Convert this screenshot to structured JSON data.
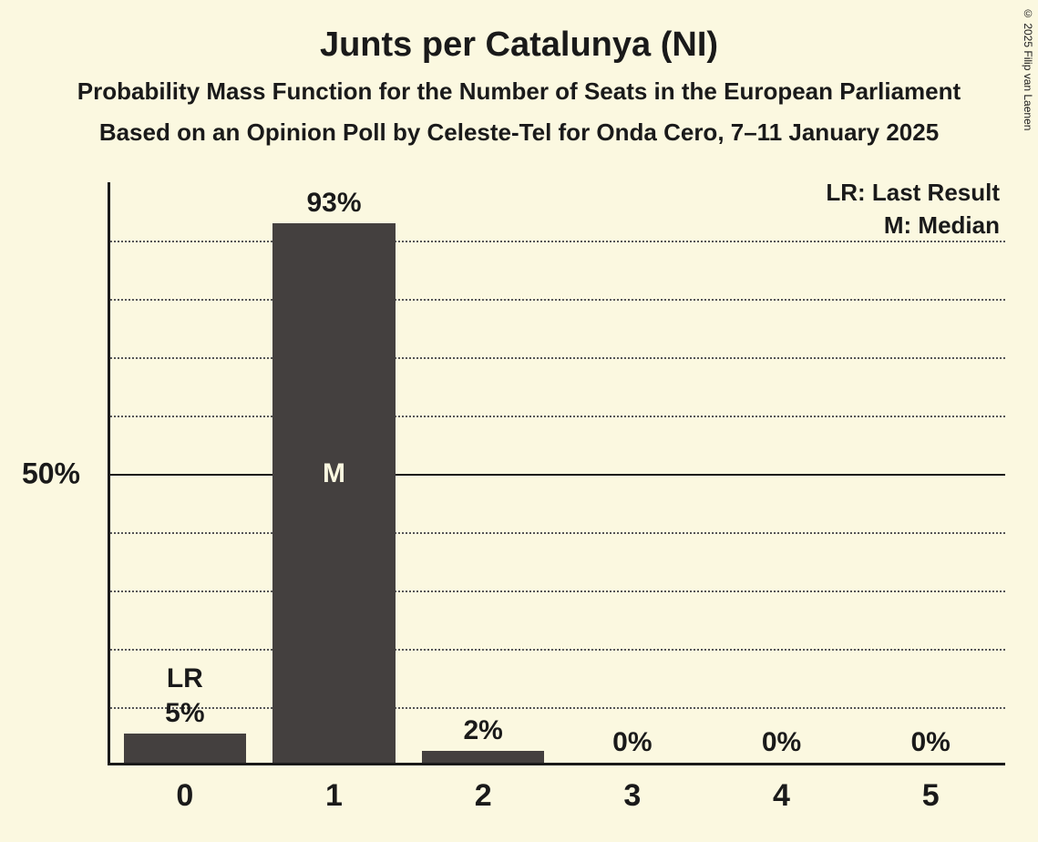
{
  "title": "Junts per Catalunya (NI)",
  "subtitle1": "Probability Mass Function for the Number of Seats in the European Parliament",
  "subtitle2": "Based on an Opinion Poll by Celeste-Tel for Onda Cero, 7–11 January 2025",
  "legend_lr": "LR: Last Result",
  "legend_m": "M: Median",
  "copyright": "© 2025 Filip van Laenen",
  "chart": {
    "type": "bar",
    "background_color": "#fbf8e0",
    "bar_color": "#44403f",
    "text_color": "#1a1a1a",
    "grid_color": "#565656",
    "y_max": 100,
    "y_tick": {
      "value": 50,
      "label": "50%"
    },
    "grid_steps": [
      10,
      20,
      30,
      40,
      60,
      70,
      80,
      90
    ],
    "bar_width_ratio": 0.82,
    "categories": [
      "0",
      "1",
      "2",
      "3",
      "4",
      "5"
    ],
    "values": [
      5,
      93,
      2,
      0,
      0,
      0
    ],
    "value_labels": [
      "5%",
      "93%",
      "2%",
      "0%",
      "0%",
      "0%"
    ],
    "lr_index": 0,
    "lr_label": "LR",
    "m_index": 1,
    "m_label": "M"
  }
}
